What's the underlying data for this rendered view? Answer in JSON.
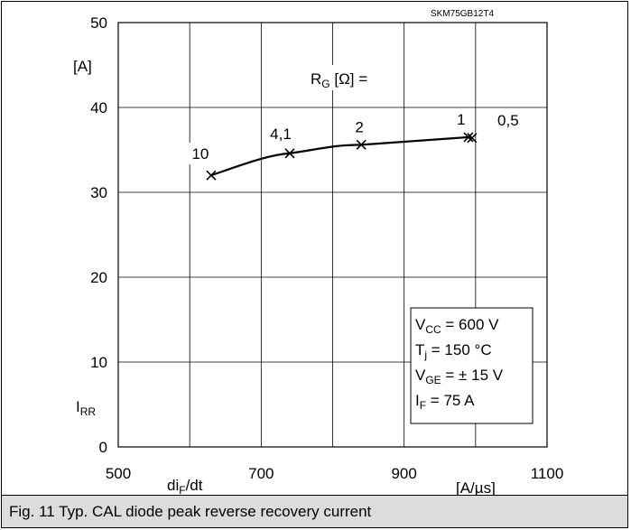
{
  "chart_data": {
    "type": "line",
    "ref": "SKM75GB12T4",
    "x": [
      630,
      740,
      840,
      990,
      995
    ],
    "y": [
      32,
      34.6,
      35.6,
      36.5,
      36.4
    ],
    "point_labels": [
      "10",
      "4,1",
      "2",
      "1",
      "0,5"
    ],
    "rg_label_main": "R",
    "rg_label_sub": "G",
    "rg_label_rest": " [Ω] =",
    "xlim": [
      500,
      1100
    ],
    "ylim": [
      0,
      50
    ],
    "xticks": [
      500,
      700,
      900,
      1100
    ],
    "yticks": [
      0,
      10,
      20,
      30,
      40,
      50
    ],
    "ylabel_unit": "[A]",
    "ylabel_main": "I",
    "ylabel_sub": "RR",
    "xlabel_main": "di",
    "xlabel_sub": "F",
    "xlabel_rest": "/dt",
    "xlabel_unit": "[A/µs]",
    "grid": true,
    "conditions": [
      {
        "main": "V",
        "sub": "CC",
        "rest": " = 600 V"
      },
      {
        "main": "T",
        "sub": "j",
        "rest": "   = 150 °C"
      },
      {
        "main": "V",
        "sub": "GE",
        "rest": " = ± 15 V"
      },
      {
        "main": "I",
        "sub": "F",
        "rest": "    = 75 A"
      }
    ]
  },
  "caption": "Fig. 11 Typ. CAL diode peak reverse recovery current"
}
